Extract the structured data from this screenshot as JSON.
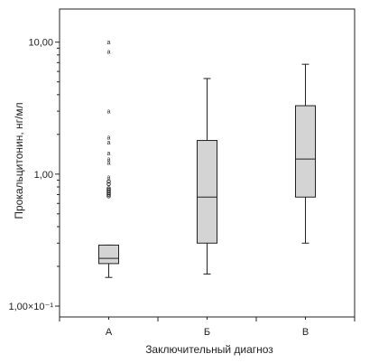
{
  "chart_data": {
    "type": "box",
    "xlabel": "Заключительный диагноз",
    "ylabel": "Прокальцитонин, нг/мл",
    "yscale": "log",
    "ylim": [
      0.1,
      17
    ],
    "y_ticks": [
      {
        "value": 0.1,
        "label": "1,00×10⁻¹"
      },
      {
        "value": 1,
        "label": "1,00"
      },
      {
        "value": 10,
        "label": "10,00"
      }
    ],
    "grid": false,
    "categories": [
      "А",
      "Б",
      "В"
    ],
    "boxes": [
      {
        "category": "А",
        "whisker_low": 0.165,
        "q1": 0.21,
        "median": 0.23,
        "q3": 0.29,
        "whisker_high": 0.29,
        "outliers": [
          {
            "value": 10.0,
            "marker": "a"
          },
          {
            "value": 8.5,
            "marker": "a"
          },
          {
            "value": 3.0,
            "marker": "a"
          },
          {
            "value": 1.9,
            "marker": "a"
          },
          {
            "value": 1.75,
            "marker": "a"
          },
          {
            "value": 1.45,
            "marker": "a"
          },
          {
            "value": 1.3,
            "marker": "a"
          },
          {
            "value": 1.22,
            "marker": "a"
          },
          {
            "value": 0.95,
            "marker": "a"
          },
          {
            "value": 0.88,
            "marker": "o"
          },
          {
            "value": 0.84,
            "marker": "o"
          },
          {
            "value": 0.78,
            "marker": "o"
          },
          {
            "value": 0.76,
            "marker": "o"
          },
          {
            "value": 0.74,
            "marker": "o"
          },
          {
            "value": 0.72,
            "marker": "o"
          },
          {
            "value": 0.7,
            "marker": "o"
          },
          {
            "value": 0.68,
            "marker": "o"
          }
        ]
      },
      {
        "category": "Б",
        "whisker_low": 0.175,
        "q1": 0.3,
        "median": 0.67,
        "q3": 1.8,
        "whisker_high": 5.3,
        "outliers": []
      },
      {
        "category": "В",
        "whisker_low": 0.3,
        "q1": 0.67,
        "median": 1.3,
        "q3": 3.3,
        "whisker_high": 6.8,
        "outliers": []
      }
    ],
    "box_fill": "#d4d4d4",
    "line_color": "#222222"
  }
}
